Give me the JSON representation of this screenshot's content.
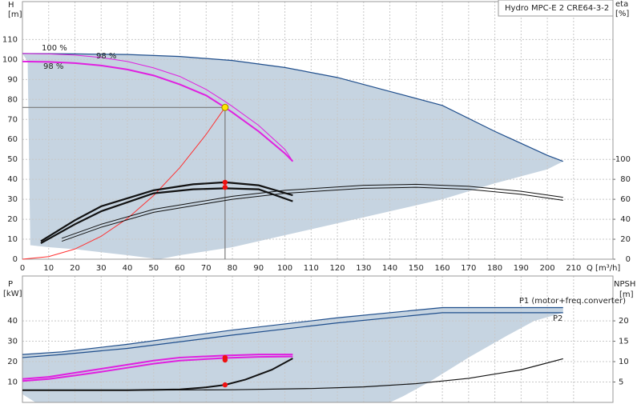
{
  "chart_data": [
    {
      "type": "line",
      "title": "Hydro MPC-E 2 CRE64-3-2",
      "y_label": "H",
      "y_unit": "[m]",
      "y2_label": "eta",
      "y2_unit": "[%]",
      "x_label": "Q [m³/h]",
      "xlim": [
        0,
        225
      ],
      "ylim": [
        0,
        129
      ],
      "y2lim": [
        0,
        258
      ],
      "xticks": [
        0,
        10,
        20,
        30,
        40,
        50,
        60,
        70,
        80,
        90,
        100,
        110,
        120,
        130,
        140,
        150,
        160,
        170,
        180,
        190,
        200,
        210
      ],
      "yticks": [
        0,
        10,
        20,
        30,
        40,
        50,
        60,
        70,
        80,
        90,
        100,
        110
      ],
      "y2ticks": [
        0,
        20,
        40,
        60,
        80,
        100
      ],
      "grid": true,
      "annotations": [
        "100 %",
        "98 %",
        "98 %"
      ],
      "duty_point": {
        "x": 77.2,
        "y": 76,
        "color": "#ffe600"
      },
      "series": [
        {
          "style": "area",
          "color": "#c6d4e1",
          "x": [
            0,
            20,
            40,
            60,
            80,
            100,
            120,
            140,
            160,
            180,
            200,
            206,
            200,
            180,
            160,
            140,
            120,
            100,
            80,
            60,
            52,
            40,
            20,
            10,
            3,
            2
          ],
          "values": [
            103,
            102.8,
            102.5,
            101.5,
            99.5,
            96,
            91,
            84,
            77,
            64,
            52,
            49,
            45,
            38,
            30,
            24,
            18,
            12,
            6,
            2,
            0,
            2,
            5,
            6,
            7,
            99
          ]
        },
        {
          "style": "line",
          "width": 1.2,
          "color": "#1f4e8c",
          "x": [
            0,
            20,
            40,
            60,
            80,
            100,
            120,
            140,
            160,
            180,
            200,
            206
          ],
          "values": [
            103,
            102.8,
            102.5,
            101.5,
            99.5,
            96,
            91,
            84,
            77,
            64,
            52,
            49
          ]
        },
        {
          "style": "line",
          "width": 1,
          "color": "#ff3030",
          "x": [
            0,
            10,
            20,
            30,
            40,
            50,
            60,
            70,
            77.2
          ],
          "values": [
            0,
            1.3,
            5.1,
            11.5,
            20.4,
            31.9,
            45.9,
            62.5,
            76
          ]
        },
        {
          "style": "line",
          "width": 1,
          "color": "#e020e0",
          "x": [
            0,
            10,
            20,
            30,
            40,
            50,
            60,
            70,
            77.2,
            80,
            90,
            100,
            103
          ],
          "values": [
            103,
            102.8,
            102.2,
            101,
            99,
            95.8,
            91.5,
            85,
            79,
            76.5,
            67,
            55,
            49
          ]
        },
        {
          "style": "line",
          "width": 2,
          "color": "#e020e0",
          "x": [
            0,
            10,
            20,
            30,
            40,
            50,
            60,
            70,
            77.2,
            80,
            90,
            100,
            103
          ],
          "values": [
            99,
            98.8,
            98.2,
            97,
            95,
            92,
            87.5,
            82,
            76,
            73.5,
            64,
            53,
            49
          ]
        },
        {
          "style": "line",
          "width": 2.2,
          "color": "#111111",
          "axis": "y2",
          "x": [
            7,
            20,
            30,
            50,
            65,
            77.2,
            90,
            103
          ],
          "values": [
            18,
            39,
            53,
            69,
            75,
            77,
            74,
            64
          ]
        },
        {
          "style": "line",
          "width": 2.2,
          "color": "#111111",
          "axis": "y2",
          "x": [
            7,
            20,
            30,
            50,
            65,
            77.2,
            90,
            103
          ],
          "values": [
            16,
            35,
            48,
            66,
            70,
            71,
            70,
            58
          ]
        },
        {
          "style": "line",
          "width": 1,
          "color": "#111111",
          "axis": "y2",
          "x": [
            15,
            30,
            50,
            80,
            100,
            130,
            150,
            170,
            190,
            206
          ],
          "values": [
            21,
            35,
            50,
            63,
            69,
            74,
            75,
            73,
            68,
            62
          ]
        },
        {
          "style": "line",
          "width": 1,
          "color": "#111111",
          "axis": "y2",
          "x": [
            15,
            30,
            50,
            80,
            100,
            130,
            150,
            170,
            190,
            206
          ],
          "values": [
            18,
            32,
            47,
            60,
            66,
            71,
            72,
            70,
            65,
            59
          ]
        },
        {
          "style": "points",
          "color": "#ee1111",
          "axis": "y2",
          "x": [
            77.2,
            77.2
          ],
          "values": [
            77,
            72
          ]
        }
      ]
    },
    {
      "type": "line",
      "y_label": "P",
      "y_unit": "[kW]",
      "y2_label": "NPSH",
      "y2_unit": "[m]",
      "xlim": [
        0,
        225
      ],
      "ylim": [
        0,
        62
      ],
      "y2lim": [
        0,
        31
      ],
      "yticks": [
        10,
        20,
        30,
        40
      ],
      "y2ticks": [
        5,
        10,
        15,
        20
      ],
      "grid": true,
      "annotations": [
        "P1 (motor+freq.converter)",
        "P2"
      ],
      "series": [
        {
          "style": "area",
          "color": "#c6d4e1",
          "x": [
            0,
            15,
            40,
            80,
            120,
            160,
            206,
            206,
            195,
            185,
            170,
            155,
            145,
            140,
            5,
            0
          ],
          "values": [
            23.5,
            24.8,
            28.5,
            35.5,
            41.5,
            46.5,
            46.5,
            44,
            40,
            33,
            22,
            10,
            3,
            0,
            0,
            4
          ]
        },
        {
          "style": "line",
          "width": 1.2,
          "color": "#1f4e8c",
          "x": [
            0,
            15,
            40,
            80,
            120,
            160,
            206
          ],
          "values": [
            23.5,
            24.8,
            28.5,
            35.5,
            41.5,
            46.5,
            46.5
          ]
        },
        {
          "style": "line",
          "width": 1.2,
          "color": "#1f4e8c",
          "x": [
            0,
            15,
            40,
            80,
            120,
            160,
            206
          ],
          "values": [
            22,
            23.5,
            26.5,
            33,
            39,
            44,
            44
          ]
        },
        {
          "style": "line",
          "width": 2,
          "color": "#e020e0",
          "x": [
            0,
            10,
            20,
            30,
            40,
            50,
            60,
            77.2,
            90,
            103
          ],
          "values": [
            11.5,
            12.5,
            14.5,
            16.5,
            18.5,
            20.5,
            22,
            23,
            23.5,
            23.5
          ]
        },
        {
          "style": "line",
          "width": 2,
          "color": "#e020e0",
          "x": [
            0,
            10,
            20,
            30,
            40,
            50,
            60,
            77.2,
            90,
            103
          ],
          "values": [
            10.5,
            11.5,
            13.2,
            15,
            17,
            19,
            20.5,
            21.8,
            22.3,
            22.5
          ]
        },
        {
          "style": "line",
          "width": 2,
          "color": "#111111",
          "axis": "y2",
          "x": [
            0,
            20,
            40,
            60,
            70,
            77.2,
            85,
            95,
            103
          ],
          "values": [
            3,
            3,
            3,
            3.2,
            3.7,
            4.3,
            5.6,
            8,
            10.8
          ]
        },
        {
          "style": "line",
          "width": 1.2,
          "color": "#111111",
          "axis": "y2",
          "x": [
            0,
            40,
            80,
            110,
            130,
            150,
            170,
            190,
            206
          ],
          "values": [
            3,
            3,
            3.1,
            3.4,
            3.8,
            4.6,
            5.9,
            8,
            10.7
          ]
        },
        {
          "style": "points",
          "color": "#ee1111",
          "x": [
            77.2,
            77.2
          ],
          "values": [
            22,
            20.8
          ]
        },
        {
          "style": "points",
          "color": "#ee1111",
          "axis": "y2",
          "x": [
            77.2
          ],
          "values": [
            4.3
          ]
        }
      ]
    }
  ]
}
